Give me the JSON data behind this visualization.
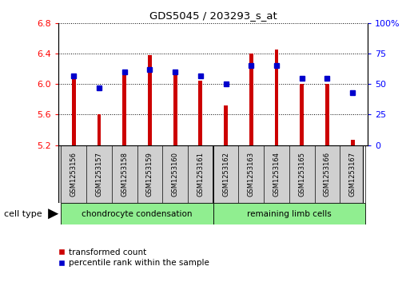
{
  "title": "GDS5045 / 203293_s_at",
  "samples": [
    "GSM1253156",
    "GSM1253157",
    "GSM1253158",
    "GSM1253159",
    "GSM1253160",
    "GSM1253161",
    "GSM1253162",
    "GSM1253163",
    "GSM1253164",
    "GSM1253165",
    "GSM1253166",
    "GSM1253167"
  ],
  "red_values": [
    6.12,
    5.6,
    6.12,
    6.38,
    6.12,
    6.05,
    5.72,
    6.4,
    6.45,
    6.0,
    6.0,
    5.27
  ],
  "blue_values_pct": [
    57,
    47,
    60,
    62,
    60,
    57,
    50,
    65,
    65,
    55,
    55,
    43
  ],
  "ymin": 5.2,
  "ymax": 6.8,
  "yticks_red": [
    5.2,
    5.6,
    6.0,
    6.4,
    6.8
  ],
  "yticks_blue": [
    0,
    25,
    50,
    75,
    100
  ],
  "bar_color": "#cc0000",
  "dot_color": "#0000cc",
  "group1_label": "chondrocyte condensation",
  "group2_label": "remaining limb cells",
  "group_color": "#90ee90",
  "sample_box_color": "#d0d0d0",
  "cell_type_label": "cell type",
  "legend_red": "transformed count",
  "legend_blue": "percentile rank within the sample",
  "bar_width": 0.15
}
